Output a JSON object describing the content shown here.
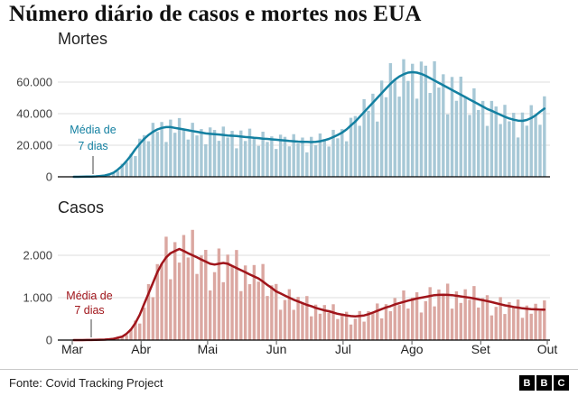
{
  "title": "Número diário de casos e mortes nos EUA",
  "source": "Fonte: Covid Tracking Project",
  "logo_letters": [
    "B",
    "B",
    "C"
  ],
  "x_axis": {
    "months": [
      "Mar",
      "Abr",
      "Mai",
      "Jun",
      "Jul",
      "Ago",
      "Set",
      "Out"
    ],
    "month_start_days": [
      0,
      31,
      61,
      92,
      122,
      153,
      184,
      214
    ],
    "total_days": 214
  },
  "chart_data": [
    {
      "type": "bar",
      "label": "Mortes",
      "annotation": [
        "Média de",
        "7 dias"
      ],
      "legend": "barras = valores diários, linha = média móvel de 7 dias",
      "bar_color": "#a7c8d6",
      "line_color": "#1380a1",
      "ylim": [
        0,
        78000
      ],
      "yticks": [
        {
          "v": 0,
          "t": "0"
        },
        {
          "v": 20000,
          "t": "20.000"
        },
        {
          "v": 40000,
          "t": "40.000"
        },
        {
          "v": 60000,
          "t": "60.000"
        }
      ],
      "sample_interval_days": 2,
      "x_start": "Mar",
      "x_end": "Out",
      "avg": [
        0,
        20,
        40,
        100,
        180,
        300,
        500,
        800,
        1500,
        2500,
        4500,
        7000,
        10000,
        13500,
        17500,
        21000,
        24000,
        26500,
        28500,
        30000,
        31000,
        31500,
        31500,
        31000,
        30500,
        30000,
        29500,
        29000,
        28500,
        28000,
        27500,
        27200,
        27000,
        26800,
        26500,
        26200,
        26000,
        25800,
        25500,
        25200,
        25000,
        24700,
        24500,
        24200,
        24000,
        23700,
        23500,
        23200,
        23000,
        22700,
        22500,
        22300,
        22200,
        22100,
        22000,
        22200,
        22500,
        23200,
        24000,
        25200,
        26500,
        28000,
        30000,
        32500,
        35000,
        38000,
        41000,
        44000,
        47000,
        50000,
        53000,
        56000,
        59000,
        61500,
        63500,
        65000,
        66000,
        66300,
        66000,
        65200,
        64000,
        62500,
        61000,
        59500,
        58000,
        56500,
        55000,
        53500,
        52000,
        50500,
        49000,
        47500,
        46000,
        44500,
        43000,
        41800,
        40500,
        39300,
        38000,
        37000,
        36200,
        35600,
        35400,
        36000,
        37200,
        39000,
        41200,
        43200
      ],
      "bars": [
        0,
        20,
        50,
        100,
        200,
        210,
        580,
        720,
        1830,
        2500,
        3600,
        8260,
        9200,
        14580,
        13130,
        24150,
        26400,
        22530,
        34200,
        28500,
        34720,
        22050,
        36230,
        27900,
        37210,
        30000,
        23600,
        34220,
        26220,
        30240,
        20630,
        31280,
        29700,
        22780,
        31800,
        24890,
        29120,
        18060,
        29330,
        22680,
        30500,
        24700,
        19600,
        28560,
        22080,
        25600,
        17630,
        26680,
        25300,
        19300,
        27000,
        21190,
        24860,
        15470,
        25300,
        19980,
        27450,
        23200,
        19200,
        29740,
        24380,
        30240,
        22500,
        37380,
        38500,
        32300,
        49200,
        41800,
        52640,
        35000,
        60950,
        50400,
        71980,
        61500,
        50800,
        74500,
        60720,
        71600,
        49500,
        73000,
        70400,
        53130,
        73200,
        56530,
        64960,
        39550,
        63250,
        48150,
        63440,
        50500,
        39200,
        56050,
        42320,
        48060,
        32250,
        48070,
        44550,
        33410,
        45600,
        35150,
        40540,
        24920,
        40710,
        32400,
        45380,
        39000,
        32960,
        50980
      ]
    },
    {
      "type": "bar",
      "label": "Casos",
      "annotation": [
        "Média de",
        "7 dias"
      ],
      "legend": "barras = valores diários, linha = média móvel de 7 dias",
      "bar_color": "#dba7a1",
      "line_color": "#a0151b",
      "ylim": [
        0,
        2750
      ],
      "yticks": [
        {
          "v": 0,
          "t": "0"
        },
        {
          "v": 1000,
          "t": "1.000"
        },
        {
          "v": 2000,
          "t": "2.000"
        }
      ],
      "sample_interval_days": 2,
      "x_start": "Mar",
      "x_end": "Out",
      "avg": [
        0,
        0,
        0,
        2,
        3,
        5,
        8,
        10,
        20,
        30,
        55,
        80,
        150,
        250,
        400,
        600,
        850,
        1100,
        1350,
        1600,
        1800,
        1950,
        2050,
        2100,
        2150,
        2100,
        2050,
        2000,
        1950,
        1900,
        1850,
        1800,
        1780,
        1800,
        1820,
        1800,
        1750,
        1700,
        1650,
        1600,
        1550,
        1500,
        1450,
        1380,
        1300,
        1230,
        1150,
        1100,
        1050,
        1000,
        950,
        910,
        870,
        830,
        800,
        760,
        730,
        700,
        680,
        650,
        620,
        600,
        580,
        565,
        560,
        570,
        580,
        610,
        650,
        690,
        730,
        770,
        800,
        840,
        870,
        900,
        930,
        955,
        980,
        1000,
        1020,
        1040,
        1060,
        1065,
        1070,
        1065,
        1060,
        1045,
        1030,
        1015,
        1000,
        980,
        960,
        940,
        920,
        895,
        870,
        845,
        820,
        800,
        780,
        765,
        750,
        740,
        730,
        725,
        720,
        720
      ],
      "bars": [
        0,
        0,
        0,
        2,
        3,
        6,
        6,
        11,
        17,
        35,
        52,
        104,
        120,
        263,
        460,
        390,
        765,
        1320,
        1013,
        1792,
        1800,
        2438,
        1435,
        2310,
        1828,
        2478,
        1948,
        2600,
        1560,
        1995,
        2128,
        1170,
        1602,
        2160,
        1365,
        2016,
        1750,
        2125,
        1155,
        1760,
        1318,
        1770,
        1378,
        1794,
        1040,
        1292,
        1323,
        715,
        945,
        1200,
        713,
        1019,
        870,
        1038,
        560,
        836,
        621,
        826,
        646,
        845,
        496,
        630,
        667,
        367,
        504,
        684,
        435,
        683,
        650,
        863,
        511,
        847,
        680,
        991,
        827,
        1170,
        744,
        1003,
        1127,
        650,
        918,
        1248,
        795,
        1193,
        1070,
        1331,
        742,
        1150,
        876,
        1198,
        950,
        1274,
        768,
        987,
        1058,
        582,
        783,
        1014,
        615,
        896,
        780,
        956,
        525,
        814,
        621,
        856,
        684,
        936
      ]
    }
  ]
}
